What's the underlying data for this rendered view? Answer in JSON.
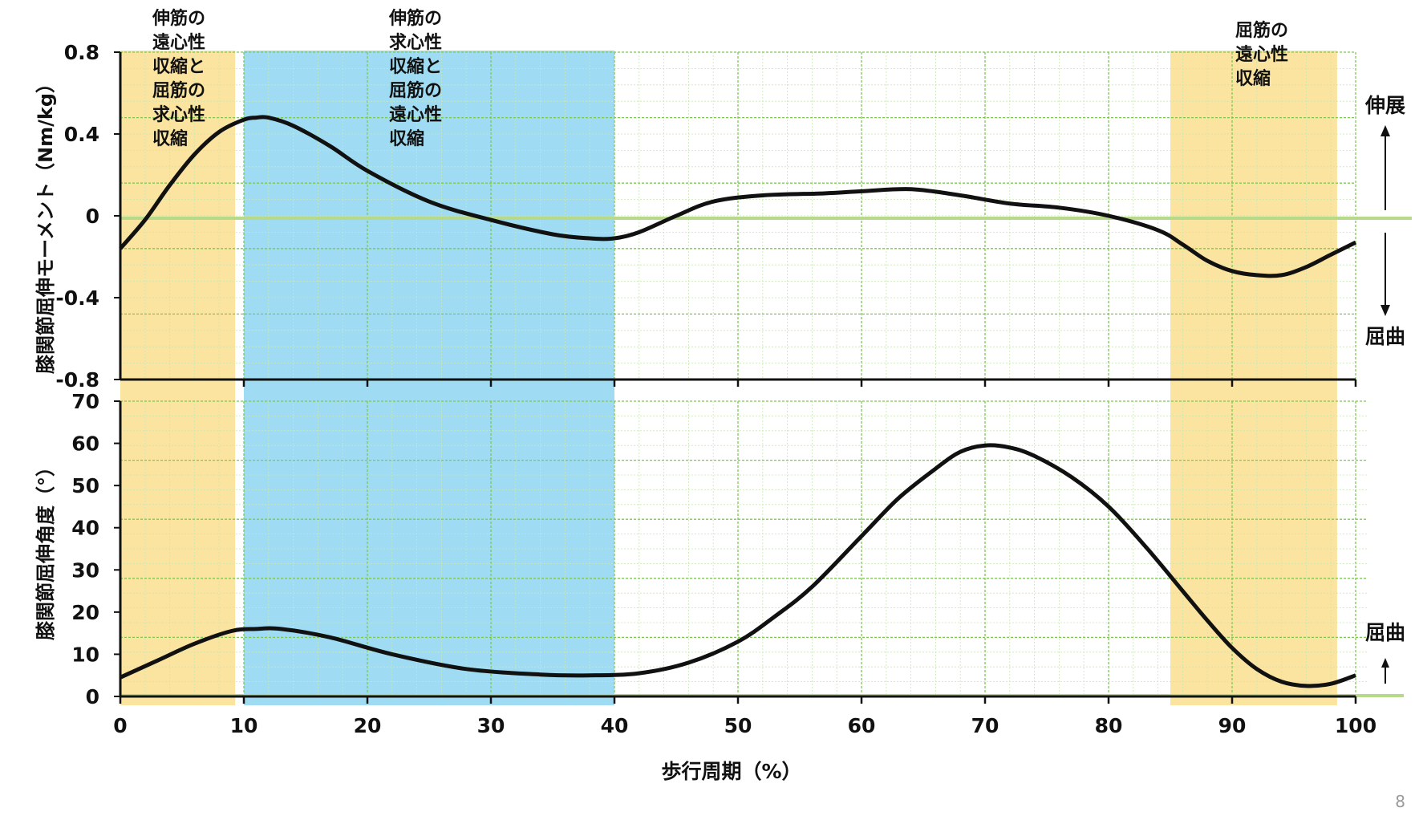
{
  "chart_data": [
    {
      "type": "line",
      "ylabel": "膝関節屈伸モーメント（Nm/kg）",
      "ylim": [
        -0.8,
        0.8
      ],
      "yticks": [
        "0.8",
        "0.4",
        "0",
        "-0.4",
        "-0.8"
      ],
      "ytick_values": [
        0.8,
        0.4,
        0,
        -0.4,
        -0.8
      ],
      "xlim": [
        0,
        100
      ],
      "grid": true,
      "direction_labels": {
        "up": "伸展",
        "down": "屈曲"
      },
      "phase_annotations": [
        {
          "lines": [
            "伸筋の",
            "遠心性",
            "収縮と",
            "屈筋の",
            "求心性",
            "収縮"
          ]
        },
        {
          "lines": [
            "伸筋の",
            "求心性",
            "収縮と",
            "屈筋の",
            "遠心性",
            "収縮"
          ]
        },
        {
          "lines": [
            "屈筋の",
            "遠心性",
            "収縮"
          ]
        }
      ],
      "series": [
        {
          "x": [
            0,
            2,
            4,
            6,
            8,
            10,
            11,
            12,
            14,
            17,
            20,
            25,
            30,
            35,
            38,
            40,
            42,
            45,
            48,
            52,
            57,
            60,
            64,
            68,
            72,
            76,
            80,
            84,
            86,
            88,
            90,
            92,
            94,
            96,
            98,
            100
          ],
          "values": [
            -0.16,
            -0.02,
            0.15,
            0.3,
            0.41,
            0.47,
            0.48,
            0.48,
            0.44,
            0.34,
            0.22,
            0.07,
            -0.02,
            -0.09,
            -0.11,
            -0.11,
            -0.08,
            0.0,
            0.07,
            0.1,
            0.11,
            0.12,
            0.13,
            0.1,
            0.06,
            0.04,
            0.0,
            -0.07,
            -0.14,
            -0.22,
            -0.27,
            -0.29,
            -0.29,
            -0.25,
            -0.19,
            -0.13
          ]
        }
      ]
    },
    {
      "type": "line",
      "ylabel": "膝関節屈伸角度（°）",
      "xlabel": "歩行周期（%）",
      "ylim": [
        0,
        70
      ],
      "yticks": [
        "70",
        "60",
        "50",
        "40",
        "30",
        "20",
        "10",
        "0"
      ],
      "ytick_values": [
        70,
        60,
        50,
        40,
        30,
        20,
        10,
        0
      ],
      "xlim": [
        0,
        100
      ],
      "xticks": [
        "0",
        "10",
        "20",
        "30",
        "40",
        "50",
        "60",
        "70",
        "80",
        "90",
        "100"
      ],
      "xtick_values": [
        0,
        10,
        20,
        30,
        40,
        50,
        60,
        70,
        80,
        90,
        100
      ],
      "grid": true,
      "direction_labels": {
        "up": "屈曲"
      },
      "series": [
        {
          "x": [
            0,
            3,
            6,
            9,
            11,
            13,
            17,
            22,
            28,
            34,
            38,
            42,
            46,
            50,
            53,
            56,
            60,
            63,
            66,
            68,
            70,
            72,
            74,
            77,
            80,
            83,
            86,
            88,
            90,
            92,
            94,
            96,
            98,
            100
          ],
          "values": [
            4.5,
            8.5,
            12.5,
            15.5,
            16,
            16,
            14,
            10,
            6.5,
            5.2,
            5,
            5.5,
            8,
            13,
            19,
            26,
            38,
            47,
            54,
            58,
            59.5,
            59,
            57,
            52,
            45,
            35.5,
            25,
            18,
            11.5,
            6.5,
            3.5,
            2.5,
            3,
            5
          ]
        }
      ]
    }
  ],
  "regions": [
    {
      "phase": "extensor-eccentric",
      "x_range": [
        0,
        9.3
      ],
      "color": "#fbe3a0"
    },
    {
      "phase": "extensor-concentric",
      "x_range": [
        10,
        40
      ],
      "color": "#9fdcf3"
    },
    {
      "phase": "flexor-eccentric",
      "x_range": [
        85,
        98.5
      ],
      "color": "#fbe3a0"
    }
  ],
  "colors": {
    "curve": "#111111",
    "zero_line": "#b6d98a",
    "grid_major": "#7ec850",
    "grid_minor": "#c9e8b4",
    "axis": "#111111"
  },
  "page_number": "8"
}
